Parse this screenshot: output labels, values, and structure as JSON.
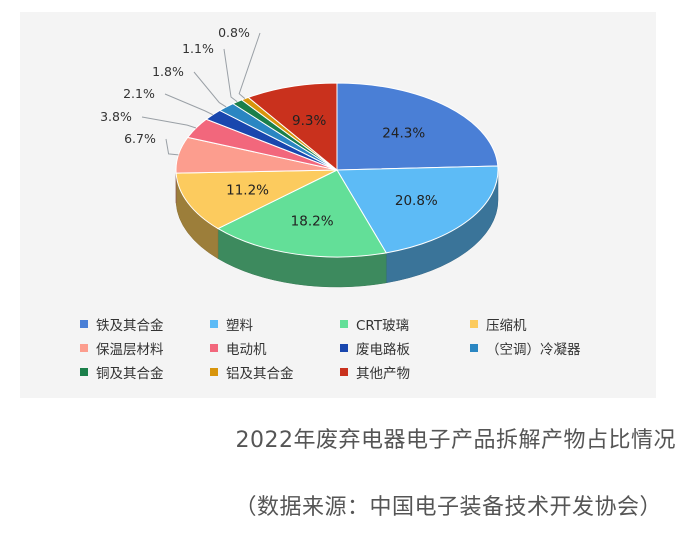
{
  "chart_data": {
    "type": "pie",
    "style": "3d",
    "legend_position": "bottom",
    "labels_outside_for_small_slices": true,
    "slices": [
      {
        "name": "铁及其合金",
        "value": 24.3,
        "label": "24.3%",
        "color": "#4a7fd6"
      },
      {
        "name": "塑料",
        "value": 20.8,
        "label": "20.8%",
        "color": "#5dbbf6"
      },
      {
        "name": "CRT玻璃",
        "value": 18.2,
        "label": "18.2%",
        "color": "#63df98"
      },
      {
        "name": "压缩机",
        "value": 11.2,
        "label": "11.2%",
        "color": "#fccb5e"
      },
      {
        "name": "保温层材料",
        "value": 6.7,
        "label": "6.7%",
        "color": "#fc9d8e"
      },
      {
        "name": "电动机",
        "value": 3.8,
        "label": "3.8%",
        "color": "#f2677c"
      },
      {
        "name": "废电路板",
        "value": 2.1,
        "label": "2.1%",
        "color": "#1947ae"
      },
      {
        "name": "（空调）冷凝器",
        "value": 1.8,
        "label": "1.8%",
        "color": "#2a86c2"
      },
      {
        "name": "铜及其合金",
        "value": 1.1,
        "label": "1.1%",
        "color": "#1b7f4a"
      },
      {
        "name": "铝及其合金",
        "value": 0.8,
        "label": "0.8%",
        "color": "#d8950c"
      },
      {
        "name": "其他产物",
        "value": 9.3,
        "label": "9.3%",
        "color": "#c9311d"
      }
    ]
  },
  "caption": {
    "title": "2022年废弃电器电子产品拆解产物占比情况",
    "source": "（数据来源：中国电子装备技术开发协会）"
  }
}
